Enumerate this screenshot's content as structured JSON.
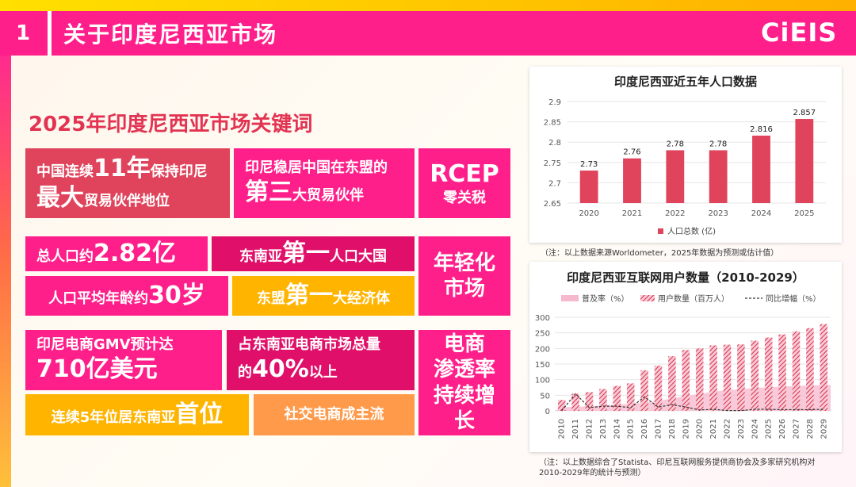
{
  "header": {
    "number": "1",
    "title": "关于印度尼西亚市场",
    "logo": "CiEIS"
  },
  "keywords": {
    "heading": "2025年印度尼西亚市场关键词",
    "trade1": {
      "pre": "中国连续",
      "num": "11年",
      "mid": "保持印尼",
      "big": "最大",
      "post": "贸易伙伴地位"
    },
    "trade2": {
      "line1": "印尼稳居中国在东盟的",
      "big": "第三",
      "post": "大贸易伙伴"
    },
    "rcep": {
      "big": "RCEP",
      "small": "零关税"
    },
    "pop1": {
      "pre": "总人口约",
      "big": "2.82亿"
    },
    "pop2": {
      "pre": "东南亚",
      "big": "第一",
      "post": "人口大国"
    },
    "pop3": {
      "pre": "人口平均年龄约",
      "big": "30岁"
    },
    "pop4": {
      "pre": "东盟",
      "big": "第一",
      "post": "大经济体"
    },
    "young": {
      "line1": "年轻化",
      "line2": "市场"
    },
    "ec1": {
      "line1": "印尼电商GMV预计达",
      "big": "710亿美元"
    },
    "ec2": {
      "line1": "占东南亚电商市场总量",
      "pre": "的",
      "big": "40%",
      "post": "以上"
    },
    "ec3": {
      "pre": "连续5年位居东南亚",
      "big": "首位"
    },
    "ec4": {
      "text": "社交电商成主流"
    },
    "ecom": {
      "line1": "电商",
      "line2": "渗透率",
      "line3": "持续增长"
    }
  },
  "chart_data": [
    {
      "type": "bar",
      "title": "印度尼西亚近五年人口数据",
      "categories": [
        "2020",
        "2021",
        "2022",
        "2023",
        "2024",
        "2025"
      ],
      "series": [
        {
          "name": "人口总数 (亿)",
          "values": [
            2.73,
            2.76,
            2.78,
            2.78,
            2.816,
            2.857
          ],
          "color": "#e0445c"
        }
      ],
      "data_labels": [
        "2.73",
        "2.76",
        "2.78",
        "2.78",
        "2.816",
        "2.857"
      ],
      "ylim": [
        2.65,
        2.9
      ],
      "yticks": [
        "2.65",
        "2.7",
        "2.75",
        "2.8",
        "2.85",
        "2.9"
      ],
      "legend_position": "bottom",
      "note": "（注：以上数据来源Worldometer，2025年数据为预测或估计值）"
    },
    {
      "type": "bar",
      "title": "印度尼西亚互联网用户数量（2010-2029）",
      "categories": [
        "2010",
        "2011",
        "2012",
        "2013",
        "2014",
        "2015",
        "2016",
        "2017",
        "2018",
        "2019",
        "2020",
        "2021",
        "2022",
        "2023",
        "2024",
        "2025",
        "2026",
        "2027",
        "2028",
        "2029"
      ],
      "series": [
        {
          "name": "普及率（%）",
          "values": [
            11,
            13,
            15,
            17,
            20,
            23,
            26,
            32,
            40,
            48,
            54,
            62,
            66,
            70,
            73,
            76,
            78,
            80,
            81,
            83
          ],
          "color": "#f6b8cc"
        },
        {
          "name": "用户数量（百万人）",
          "values": [
            35,
            55,
            60,
            70,
            80,
            88,
            130,
            145,
            175,
            195,
            200,
            210,
            212,
            213,
            225,
            235,
            245,
            255,
            265,
            278
          ],
          "color": "#e0445c"
        },
        {
          "name": "同比增幅（%）",
          "values": [
            0,
            55,
            10,
            15,
            15,
            10,
            45,
            12,
            20,
            12,
            3,
            5,
            1,
            1,
            5,
            5,
            4,
            4,
            4,
            5
          ],
          "color": "#333333"
        }
      ],
      "ylim": [
        0,
        300
      ],
      "yticks": [
        "0",
        "50",
        "100",
        "150",
        "200",
        "250",
        "300"
      ],
      "legend_position": "top",
      "note_line1": "（注：以上数据综合了Statista、印尼互联网服务提供商协会及多家研究机构对",
      "note_line2": "2010-2029年的统计与预测）"
    }
  ]
}
